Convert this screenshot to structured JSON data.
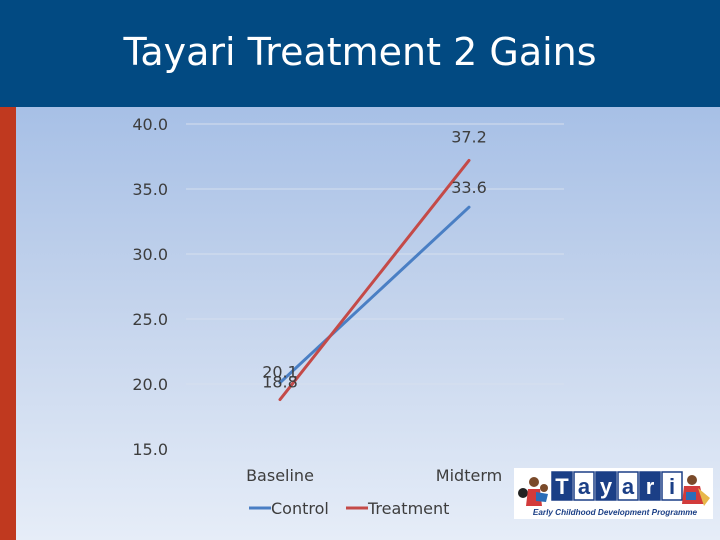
{
  "title": "Tayari Treatment 2 Gains",
  "chart_data": {
    "type": "line",
    "categories": [
      "Baseline",
      "Midterm"
    ],
    "series": [
      {
        "name": "Control",
        "values": [
          20.1,
          33.6
        ],
        "color": "#4a7fc4"
      },
      {
        "name": "Treatment",
        "values": [
          18.8,
          37.2
        ],
        "color": "#c44a48"
      }
    ],
    "ylim": [
      15.0,
      40.0
    ],
    "yticks": [
      "40.0",
      "35.0",
      "30.0",
      "25.0",
      "20.0",
      "15.0"
    ],
    "data_labels": [
      [
        "20.1",
        "33.6"
      ],
      [
        "18.8",
        "37.2"
      ]
    ],
    "grid": true,
    "legend": "bottom"
  },
  "logo": {
    "letters": [
      "T",
      "a",
      "y",
      "a",
      "r",
      "i"
    ],
    "subtitle": "Early Childhood Development Programme",
    "accent_color": "#1b3f86"
  }
}
